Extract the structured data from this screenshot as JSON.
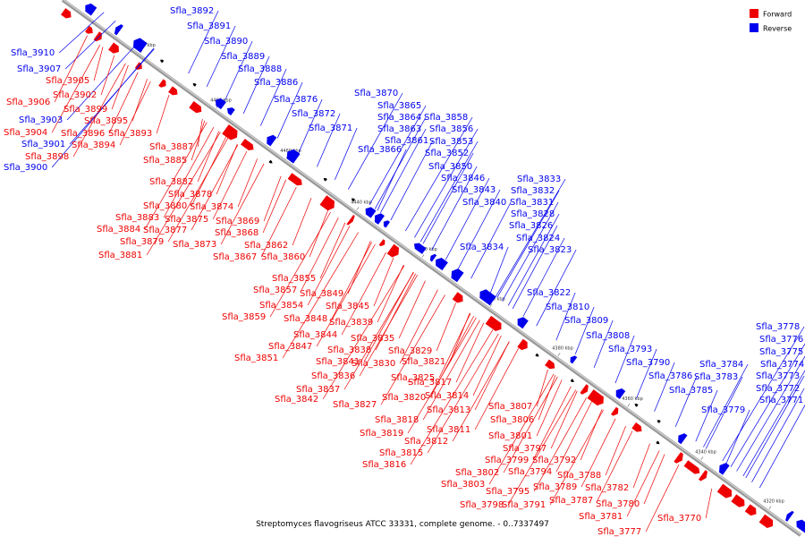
{
  "caption": "Streptomyces flavogriseus ATCC 33331, complete genome. - 0..7337497",
  "legend": [
    {
      "label": "Forward",
      "color": "#ee0000"
    },
    {
      "label": "Reverse",
      "color": "#0000ee"
    }
  ],
  "colors": {
    "forward": "#ee0000",
    "reverse": "#0000ee",
    "axis": "#999999",
    "black_mark": "#000000"
  },
  "ticks": [
    "4500 kbp",
    "4480 kbp",
    "4460 kbp",
    "4440 kbp",
    "4420 kbp",
    "4400 kbp",
    "4380 kbp",
    "4360 kbp",
    "4340 kbp",
    "4320 kbp"
  ],
  "reverse_labels": [
    "Sfla_3892",
    "Sfla_3891",
    "Sfla_3890",
    "Sfla_3889",
    "Sfla_3888",
    "Sfla_3886",
    "Sfla_3910",
    "Sfla_3907",
    "Sfla_3876",
    "Sfla_3870",
    "Sfla_3872",
    "Sfla_3865",
    "Sfla_3871",
    "Sfla_3864",
    "Sfla_3858",
    "Sfla_3863",
    "Sfla_3856",
    "Sfla_3861",
    "Sfla_3853",
    "Sfla_3866",
    "Sfla_3852",
    "Sfla_3850",
    "Sfla_3846",
    "Sfla_3833",
    "Sfla_3843",
    "Sfla_3832",
    "Sfla_3840",
    "Sfla_3831",
    "Sfla_3828",
    "Sfla_3826",
    "Sfla_3824",
    "Sfla_3834",
    "Sfla_3823",
    "Sfla_3822",
    "Sfla_3810",
    "Sfla_3809",
    "Sfla_3808",
    "Sfla_3793",
    "Sfla_3790",
    "Sfla_3786",
    "Sfla_3785",
    "Sfla_3784",
    "Sfla_3783",
    "Sfla_3779",
    "Sfla_3778",
    "Sfla_3776",
    "Sfla_3775",
    "Sfla_3774",
    "Sfla_3773",
    "Sfla_3772",
    "Sfla_3771",
    "Sfla_3903",
    "Sfla_3901",
    "Sfla_3900"
  ],
  "forward_labels": [
    "Sfla_3905",
    "Sfla_3906",
    "Sfla_3902",
    "Sfla_3899",
    "Sfla_3904",
    "Sfla_3896",
    "Sfla_3895",
    "Sfla_3893",
    "Sfla_3894",
    "Sfla_3898",
    "Sfla_3887",
    "Sfla_3885",
    "Sfla_3882",
    "Sfla_3878",
    "Sfla_3880",
    "Sfla_3874",
    "Sfla_3883",
    "Sfla_3875",
    "Sfla_3869",
    "Sfla_3884",
    "Sfla_3877",
    "Sfla_3868",
    "Sfla_3879",
    "Sfla_3873",
    "Sfla_3862",
    "Sfla_3881",
    "Sfla_3867",
    "Sfla_3860",
    "Sfla_3855",
    "Sfla_3857",
    "Sfla_3849",
    "Sfla_3854",
    "Sfla_3845",
    "Sfla_3859",
    "Sfla_3848",
    "Sfla_3839",
    "Sfla_3844",
    "Sfla_3835",
    "Sfla_3847",
    "Sfla_3838",
    "Sfla_3829",
    "Sfla_3851",
    "Sfla_3841",
    "Sfla_3830",
    "Sfla_3821",
    "Sfla_3836",
    "Sfla_3825",
    "Sfla_3817",
    "Sfla_3837",
    "Sfla_3814",
    "Sfla_3842",
    "Sfla_3827",
    "Sfla_3820",
    "Sfla_3807",
    "Sfla_3813",
    "Sfla_3806",
    "Sfla_3818",
    "Sfla_3811",
    "Sfla_3819",
    "Sfla_3801",
    "Sfla_3812",
    "Sfla_3797",
    "Sfla_3815",
    "Sfla_3799",
    "Sfla_3792",
    "Sfla_3816",
    "Sfla_3802",
    "Sfla_3794",
    "Sfla_3788",
    "Sfla_3803",
    "Sfla_3795",
    "Sfla_3789",
    "Sfla_3782",
    "Sfla_3798",
    "Sfla_3791",
    "Sfla_3787",
    "Sfla_3780",
    "Sfla_3781",
    "Sfla_3770",
    "Sfla_3777"
  ]
}
